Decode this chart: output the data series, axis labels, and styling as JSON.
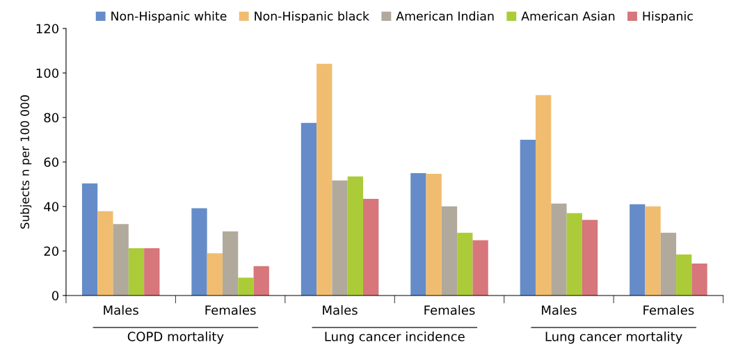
{
  "chart_data": {
    "type": "bar",
    "categories": [
      "Males",
      "Females",
      "Males",
      "Females",
      "Males",
      "Females"
    ],
    "series": [
      {
        "name": "Non-Hispanic white",
        "color": "#658cc8",
        "values": [
          50.4,
          39.2,
          77.6,
          55.0,
          70.0,
          41.0
        ]
      },
      {
        "name": "Non-Hispanic black",
        "color": "#f0bd70",
        "values": [
          37.9,
          19.0,
          104.1,
          54.7,
          90.1,
          40.1
        ]
      },
      {
        "name": "American Indian",
        "color": "#b1a99c",
        "values": [
          32.1,
          28.8,
          51.7,
          40.1,
          41.3,
          28.2
        ]
      },
      {
        "name": "American Asian",
        "color": "#abcc38",
        "values": [
          21.2,
          8.0,
          53.5,
          28.2,
          37.0,
          18.4
        ]
      },
      {
        "name": "Hispanic",
        "color": "#d7767b",
        "values": [
          21.2,
          13.2,
          43.4,
          24.8,
          34.0,
          14.4
        ]
      }
    ],
    "ylabel": "Subjects n per 100 000",
    "ylim": [
      0,
      120
    ],
    "yticks": [
      0,
      20,
      40,
      60,
      80,
      100,
      120
    ],
    "annotations": [
      "COPD mortality",
      "Lung cancer incidence",
      "Lung cancer mortality"
    ],
    "legend": "top",
    "grid": false
  }
}
